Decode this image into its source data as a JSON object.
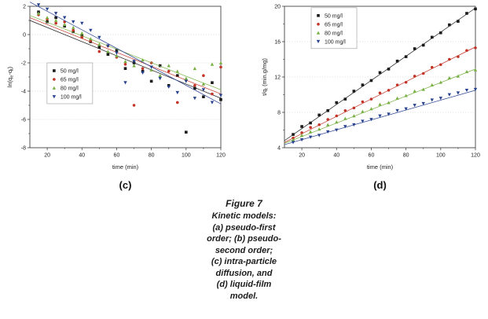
{
  "colors": {
    "series_50": "#1a1a1a",
    "series_65": "#c23427",
    "series_80": "#78b043",
    "series_100": "#28418f",
    "grid": "#b8b8b8",
    "axis": "#444444",
    "text": "#1c1c1c"
  },
  "chart_data": [
    {
      "id": "c",
      "type": "scatter",
      "panel_label": "(c)",
      "xlabel": "time (min)",
      "ylabel": "ln(q_e-q_t)",
      "xlim": [
        10,
        120
      ],
      "ylim": [
        -8,
        2
      ],
      "xticks": [
        20,
        40,
        60,
        80,
        100,
        120
      ],
      "yticks": [
        2,
        0,
        -2,
        -4,
        -6,
        -8
      ],
      "xminor": [
        30,
        50,
        70,
        90,
        110
      ],
      "yminor": [
        1,
        -1,
        -3,
        -5,
        -7
      ],
      "grid_yticks": [
        0,
        -2,
        -4,
        -6
      ],
      "legend": {
        "pos": [
          0.09,
          0.4
        ]
      },
      "series": [
        {
          "name": "50 mg/l",
          "marker": "square",
          "color": "#1a1a1a",
          "fit": [
            [
              10,
              1.0
            ],
            [
              120,
              -4.5
            ]
          ],
          "points": [
            [
              15,
              1.6
            ],
            [
              20,
              0.9
            ],
            [
              25,
              1.2
            ],
            [
              30,
              0.6
            ],
            [
              35,
              0.2
            ],
            [
              40,
              -0.1
            ],
            [
              45,
              -0.5
            ],
            [
              50,
              -0.9
            ],
            [
              55,
              -1.4
            ],
            [
              60,
              -1.1
            ],
            [
              65,
              -2.4
            ],
            [
              70,
              -2.0
            ],
            [
              75,
              -2.6
            ],
            [
              80,
              -3.3
            ],
            [
              85,
              -2.2
            ],
            [
              90,
              -3.6
            ],
            [
              95,
              -2.9
            ],
            [
              100,
              -6.9
            ],
            [
              105,
              -3.8
            ],
            [
              110,
              -4.4
            ],
            [
              115,
              -3.4
            ],
            [
              120,
              -4.6
            ]
          ]
        },
        {
          "name": "65 mg/l",
          "marker": "circle",
          "color": "#c23427",
          "fit": [
            [
              10,
              1.2
            ],
            [
              120,
              -4.2
            ]
          ],
          "points": [
            [
              15,
              1.4
            ],
            [
              20,
              1.1
            ],
            [
              25,
              0.8
            ],
            [
              30,
              0.9
            ],
            [
              35,
              0.3
            ],
            [
              40,
              -0.2
            ],
            [
              45,
              -0.4
            ],
            [
              50,
              -1.2
            ],
            [
              55,
              -0.8
            ],
            [
              60,
              -1.6
            ],
            [
              65,
              -2.1
            ],
            [
              70,
              -5.0
            ],
            [
              75,
              -2.4
            ],
            [
              80,
              -2.0
            ],
            [
              85,
              -3.0
            ],
            [
              90,
              -2.6
            ],
            [
              95,
              -4.8
            ],
            [
              100,
              -3.2
            ],
            [
              105,
              -3.6
            ],
            [
              110,
              -2.9
            ],
            [
              115,
              -4.2
            ],
            [
              120,
              -2.3
            ]
          ]
        },
        {
          "name": "80 mg/l",
          "marker": "triangle-up",
          "color": "#78b043",
          "fit": [
            [
              10,
              1.35
            ],
            [
              120,
              -3.9
            ]
          ],
          "points": [
            [
              15,
              1.5
            ],
            [
              20,
              1.2
            ],
            [
              25,
              1.0
            ],
            [
              30,
              0.7
            ],
            [
              35,
              0.5
            ],
            [
              40,
              0.1
            ],
            [
              45,
              -0.3
            ],
            [
              50,
              -0.7
            ],
            [
              55,
              -1.2
            ],
            [
              60,
              -1.5
            ],
            [
              65,
              -1.9
            ],
            [
              70,
              -2.2
            ],
            [
              75,
              -1.8
            ],
            [
              80,
              -2.5
            ],
            [
              85,
              -2.9
            ],
            [
              90,
              -2.2
            ],
            [
              95,
              -2.6
            ],
            [
              100,
              -3.1
            ],
            [
              105,
              -2.4
            ],
            [
              110,
              -3.5
            ],
            [
              115,
              -2.1
            ],
            [
              120,
              -2.0
            ]
          ]
        },
        {
          "name": "100 mg/l",
          "marker": "triangle-down",
          "color": "#28418f",
          "fit": [
            [
              10,
              2.3
            ],
            [
              120,
              -4.9
            ]
          ],
          "points": [
            [
              15,
              2.1
            ],
            [
              20,
              1.8
            ],
            [
              25,
              1.5
            ],
            [
              30,
              1.2
            ],
            [
              35,
              0.9
            ],
            [
              40,
              0.8
            ],
            [
              45,
              0.3
            ],
            [
              50,
              -0.2
            ],
            [
              55,
              -0.8
            ],
            [
              60,
              -1.3
            ],
            [
              65,
              -3.4
            ],
            [
              70,
              -1.9
            ],
            [
              75,
              -2.7
            ],
            [
              80,
              -2.3
            ],
            [
              85,
              -3.1
            ],
            [
              90,
              -3.7
            ],
            [
              95,
              -4.1
            ],
            [
              100,
              -3.3
            ],
            [
              105,
              -4.5
            ],
            [
              110,
              -3.9
            ],
            [
              115,
              -4.8
            ],
            [
              120,
              -4.3
            ]
          ]
        }
      ]
    },
    {
      "id": "d",
      "type": "scatter",
      "panel_label": "(d)",
      "xlabel": "time (min)",
      "ylabel": "t/q_t (min.g/mg)",
      "xlim": [
        10,
        120
      ],
      "ylim": [
        4,
        20
      ],
      "xticks": [
        20,
        40,
        60,
        80,
        100,
        120
      ],
      "yticks": [
        4,
        8,
        12,
        16,
        20
      ],
      "xminor": [
        30,
        50,
        70,
        90,
        110
      ],
      "yminor": [
        6,
        10,
        14,
        18
      ],
      "grid_yticks": [
        8,
        12,
        16
      ],
      "legend": {
        "pos": [
          0.14,
          0.01
        ]
      },
      "series": [
        {
          "name": "50 mg/l",
          "marker": "square",
          "color": "#1a1a1a",
          "fit": [
            [
              10,
              4.8
            ],
            [
              120,
              19.8
            ]
          ],
          "points": [
            [
              15,
              5.5
            ],
            [
              20,
              6.4
            ],
            [
              25,
              6.8
            ],
            [
              30,
              7.7
            ],
            [
              35,
              8.2
            ],
            [
              40,
              9.1
            ],
            [
              45,
              9.5
            ],
            [
              50,
              10.4
            ],
            [
              55,
              11.1
            ],
            [
              60,
              11.6
            ],
            [
              65,
              12.5
            ],
            [
              70,
              12.9
            ],
            [
              75,
              13.8
            ],
            [
              80,
              14.3
            ],
            [
              85,
              15.2
            ],
            [
              90,
              15.6
            ],
            [
              95,
              16.5
            ],
            [
              100,
              17.0
            ],
            [
              105,
              17.9
            ],
            [
              110,
              18.3
            ],
            [
              115,
              19.2
            ],
            [
              120,
              19.7
            ]
          ]
        },
        {
          "name": "65 mg/l",
          "marker": "circle",
          "color": "#c23427",
          "fit": [
            [
              10,
              4.6
            ],
            [
              120,
              15.4
            ]
          ],
          "points": [
            [
              15,
              5.1
            ],
            [
              20,
              5.7
            ],
            [
              25,
              6.3
            ],
            [
              30,
              6.6
            ],
            [
              35,
              7.2
            ],
            [
              40,
              7.6
            ],
            [
              45,
              8.2
            ],
            [
              50,
              8.5
            ],
            [
              55,
              9.2
            ],
            [
              60,
              9.5
            ],
            [
              65,
              10.2
            ],
            [
              70,
              10.5
            ],
            [
              75,
              11.1
            ],
            [
              80,
              11.4
            ],
            [
              85,
              12.1
            ],
            [
              90,
              12.4
            ],
            [
              95,
              13.1
            ],
            [
              100,
              13.4
            ],
            [
              105,
              14.0
            ],
            [
              110,
              14.3
            ],
            [
              115,
              15.0
            ],
            [
              120,
              15.3
            ]
          ]
        },
        {
          "name": "80 mg/l",
          "marker": "triangle-up",
          "color": "#78b043",
          "fit": [
            [
              10,
              4.5
            ],
            [
              120,
              12.9
            ]
          ],
          "points": [
            [
              15,
              4.9
            ],
            [
              20,
              5.4
            ],
            [
              25,
              5.8
            ],
            [
              30,
              6.1
            ],
            [
              35,
              6.6
            ],
            [
              40,
              6.9
            ],
            [
              45,
              7.3
            ],
            [
              50,
              7.6
            ],
            [
              55,
              8.1
            ],
            [
              60,
              8.4
            ],
            [
              65,
              8.9
            ],
            [
              70,
              9.1
            ],
            [
              75,
              9.6
            ],
            [
              80,
              9.9
            ],
            [
              85,
              10.4
            ],
            [
              90,
              10.6
            ],
            [
              95,
              11.1
            ],
            [
              100,
              11.4
            ],
            [
              105,
              11.9
            ],
            [
              110,
              12.1
            ],
            [
              115,
              12.6
            ],
            [
              120,
              12.8
            ]
          ]
        },
        {
          "name": "100 mg/l",
          "marker": "triangle-down",
          "color": "#28418f",
          "fit": [
            [
              10,
              4.35
            ],
            [
              120,
              10.5
            ]
          ],
          "points": [
            [
              15,
              4.6
            ],
            [
              20,
              4.9
            ],
            [
              25,
              5.2
            ],
            [
              30,
              5.4
            ],
            [
              35,
              5.8
            ],
            [
              40,
              6.0
            ],
            [
              45,
              6.4
            ],
            [
              50,
              6.6
            ],
            [
              55,
              7.0
            ],
            [
              60,
              7.2
            ],
            [
              65,
              7.6
            ],
            [
              70,
              7.8
            ],
            [
              75,
              8.2
            ],
            [
              80,
              8.4
            ],
            [
              85,
              8.8
            ],
            [
              90,
              9.0
            ],
            [
              95,
              9.4
            ],
            [
              100,
              9.6
            ],
            [
              105,
              10.0
            ],
            [
              110,
              10.2
            ],
            [
              115,
              10.5
            ],
            [
              120,
              10.6
            ]
          ]
        }
      ]
    }
  ],
  "caption": {
    "title": "Figure 7",
    "body": "Kinetic models:\n(a) pseudo-first\norder; (b) pseudo-\nsecond order;\n(c) intra-particle\ndiffusion, and\n(d) liquid-film\nmodel."
  }
}
